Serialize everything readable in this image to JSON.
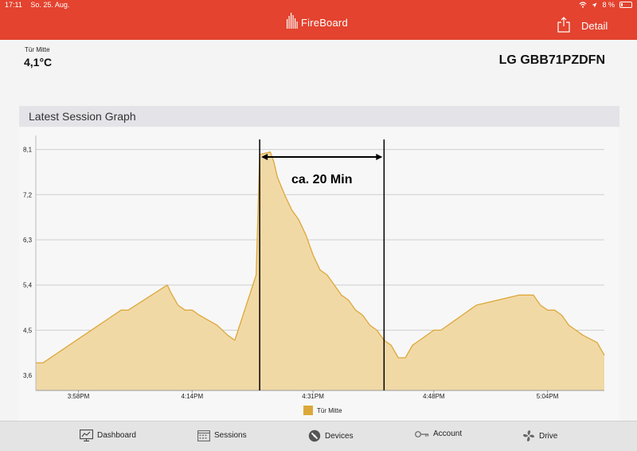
{
  "status_bar": {
    "time": "17:11",
    "date": "So. 25. Aug.",
    "battery_text": "8 %"
  },
  "header": {
    "brand": "FireBoard",
    "detail_label": "Detail"
  },
  "sensor": {
    "name": "Tür Mitte",
    "temperature": "4,1°C"
  },
  "device": {
    "name": "LG GBB71PZDFN"
  },
  "section": {
    "title": "Latest Session Graph"
  },
  "annotation": {
    "text": "ca. 20 Min"
  },
  "chart_data": {
    "type": "area",
    "title": "",
    "xlabel": "",
    "ylabel": "",
    "y_ticks": [
      "8,1",
      "7,2",
      "6,3",
      "5,4",
      "4,5",
      "3,6"
    ],
    "y_tick_values": [
      8.1,
      7.2,
      6.3,
      5.4,
      4.5,
      3.6
    ],
    "ylim": [
      3.3,
      8.3
    ],
    "x_ticks": [
      "3:58PM",
      "4:14PM",
      "4:31PM",
      "4:48PM",
      "5:04PM"
    ],
    "x_tick_minutes": [
      958,
      974,
      991,
      1008,
      1024
    ],
    "xlim": [
      952,
      1032
    ],
    "series": [
      {
        "name": "Tür Mitte",
        "color": "#dca83a",
        "fill": "#f1d9a6",
        "x": [
          952,
          953,
          964,
          965,
          970.5,
          971,
          972,
          973,
          974,
          975,
          977.5,
          979,
          980,
          983,
          983.5,
          985,
          985.5,
          986,
          987,
          988,
          989,
          990,
          991,
          992,
          993,
          994,
          995,
          996,
          997,
          998,
          999,
          1000,
          1001,
          1002,
          1003,
          1004,
          1005,
          1006,
          1008,
          1009,
          1011,
          1012,
          1013,
          1014,
          1020,
          1022,
          1023,
          1024,
          1025,
          1026,
          1027,
          1029,
          1031,
          1032
        ],
        "y": [
          3.85,
          3.85,
          4.9,
          4.9,
          5.4,
          5.25,
          5.0,
          4.9,
          4.9,
          4.8,
          4.6,
          4.4,
          4.3,
          5.6,
          8.0,
          8.05,
          7.85,
          7.55,
          7.2,
          6.9,
          6.7,
          6.4,
          6.0,
          5.7,
          5.6,
          5.4,
          5.2,
          5.1,
          4.9,
          4.8,
          4.6,
          4.5,
          4.3,
          4.2,
          3.95,
          3.95,
          4.2,
          4.3,
          4.5,
          4.5,
          4.7,
          4.8,
          4.9,
          5.0,
          5.2,
          5.2,
          5.0,
          4.9,
          4.9,
          4.8,
          4.6,
          4.4,
          4.25,
          4.0
        ]
      }
    ],
    "markers": [
      {
        "x_minutes": 983.5,
        "label": ""
      },
      {
        "x_minutes": 1001,
        "label": ""
      }
    ],
    "grid": true,
    "legend_position": "bottom-center"
  },
  "tabs": [
    {
      "label": "Dashboard",
      "icon": "dashboard-icon"
    },
    {
      "label": "Sessions",
      "icon": "calendar-icon"
    },
    {
      "label": "Devices",
      "icon": "devices-icon"
    },
    {
      "label": "Account",
      "icon": "key-icon"
    },
    {
      "label": "Drive",
      "icon": "fan-icon"
    }
  ]
}
